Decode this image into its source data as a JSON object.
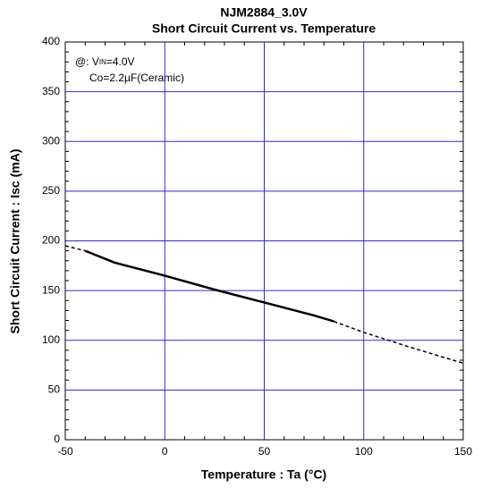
{
  "chart_data": {
    "type": "line",
    "title": "NJM2884_3.0V",
    "subtitle": "Short Circuit Current vs. Temperature",
    "x_label": "Temperature : Ta (°C)",
    "y_label": "Short Circuit Current : Isc (mA)",
    "annotations": [
      [
        "@: V",
        "IN",
        "=4.0V"
      ],
      [
        "Co=2.2µF(Ceramic)"
      ]
    ],
    "x": [
      -50,
      -40,
      -25,
      0,
      25,
      50,
      75,
      85,
      100,
      125,
      150
    ],
    "series": [
      {
        "color": "#000000",
        "style": "solid",
        "values": [
          null,
          190,
          178,
          165,
          151,
          138,
          125,
          119,
          null,
          null,
          null
        ]
      },
      {
        "color": "#000000",
        "style": "dashed",
        "values": [
          195,
          190,
          null,
          null,
          null,
          null,
          null,
          119,
          108,
          92,
          77
        ]
      }
    ],
    "xlim": [
      -50,
      150
    ],
    "xticks": [
      -50,
      0,
      50,
      100,
      150
    ],
    "ylim": [
      0,
      400
    ],
    "yticks": [
      0,
      50,
      100,
      150,
      200,
      250,
      300,
      350,
      400
    ],
    "grid": true,
    "grid_color": "#2b2bd0",
    "minor_divisions": 5
  }
}
